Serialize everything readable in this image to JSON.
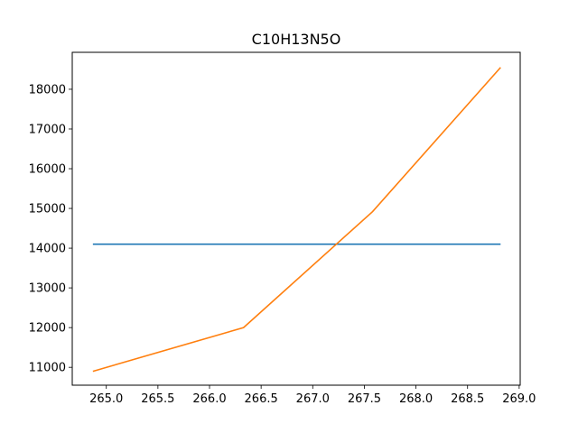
{
  "chart_data": {
    "type": "line",
    "title": "C10H13N5O",
    "xlabel": "",
    "ylabel": "",
    "xlim": [
      264.67,
      269.01
    ],
    "ylim": [
      10550,
      18930
    ],
    "xticks": [
      265.0,
      265.5,
      266.0,
      266.5,
      267.0,
      267.5,
      268.0,
      268.5,
      269.0
    ],
    "xtick_labels": [
      "265.0",
      "265.5",
      "266.0",
      "266.5",
      "267.0",
      "267.5",
      "268.0",
      "268.5",
      "269.0"
    ],
    "yticks": [
      11000,
      12000,
      13000,
      14000,
      15000,
      16000,
      17000,
      18000
    ],
    "ytick_labels": [
      "11000",
      "12000",
      "13000",
      "14000",
      "15000",
      "16000",
      "17000",
      "18000"
    ],
    "grid": false,
    "series": [
      {
        "color": "#1f77b4",
        "x": [
          264.87,
          268.82
        ],
        "y": [
          14100,
          14100
        ]
      },
      {
        "color": "#ff7f0e",
        "x": [
          264.87,
          266.33,
          267.58,
          268.82
        ],
        "y": [
          10900,
          12000,
          14920,
          18550
        ]
      }
    ]
  }
}
